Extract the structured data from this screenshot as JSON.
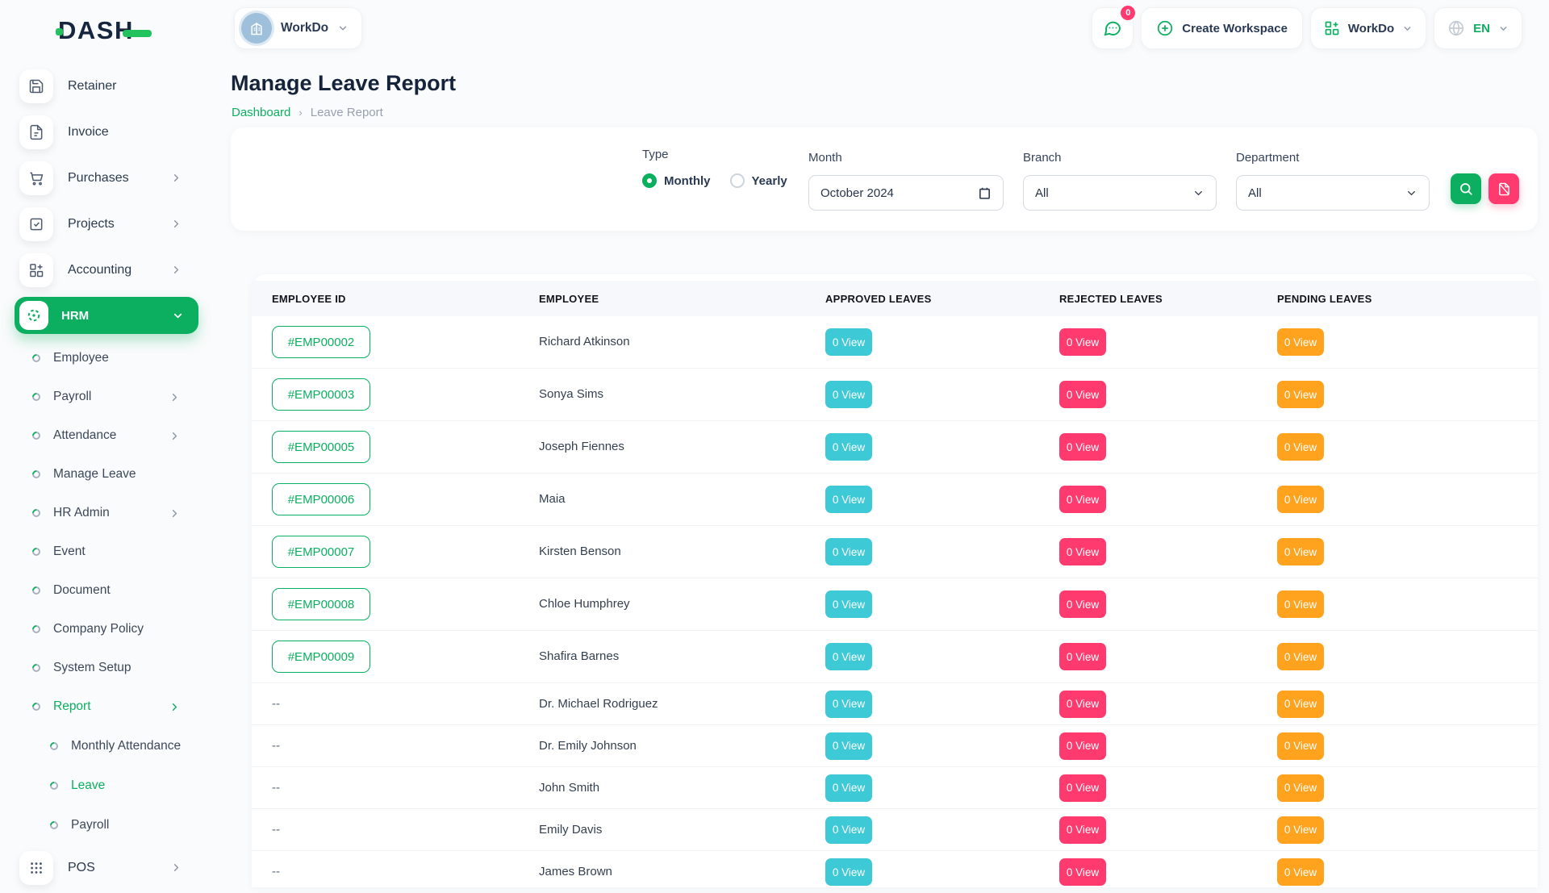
{
  "brand": {
    "logo_text": "DASH"
  },
  "workspace_selector": {
    "name": "WorkDo"
  },
  "header": {
    "messages_badge": "0",
    "create_workspace_label": "Create Workspace",
    "workspace_dropdown_label": "WorkDo",
    "language": "EN"
  },
  "sidebar": {
    "items": [
      {
        "label": "Retainer",
        "icon": "save",
        "chevron": false
      },
      {
        "label": "Invoice",
        "icon": "invoice",
        "chevron": false
      },
      {
        "label": "Purchases",
        "icon": "cart",
        "chevron": true
      },
      {
        "label": "Projects",
        "icon": "projects",
        "chevron": true
      },
      {
        "label": "Accounting",
        "icon": "accounting",
        "chevron": true
      }
    ],
    "hrm": {
      "label": "HRM"
    },
    "hrm_submenu": [
      {
        "label": "Employee",
        "chevron": false,
        "active": false
      },
      {
        "label": "Payroll",
        "chevron": true,
        "active": false
      },
      {
        "label": "Attendance",
        "chevron": true,
        "active": false
      },
      {
        "label": "Manage Leave",
        "chevron": false,
        "active": false
      },
      {
        "label": "HR Admin",
        "chevron": true,
        "active": false
      },
      {
        "label": "Event",
        "chevron": false,
        "active": false
      },
      {
        "label": "Document",
        "chevron": false,
        "active": false
      },
      {
        "label": "Company Policy",
        "chevron": false,
        "active": false
      },
      {
        "label": "System Setup",
        "chevron": false,
        "active": false
      },
      {
        "label": "Report",
        "chevron": true,
        "active": true,
        "children": [
          {
            "label": "Monthly Attendance",
            "active": false
          },
          {
            "label": "Leave",
            "active": true
          },
          {
            "label": "Payroll",
            "active": false
          }
        ]
      }
    ],
    "pos": {
      "label": "POS"
    }
  },
  "page": {
    "title": "Manage Leave Report",
    "breadcrumb_link": "Dashboard",
    "breadcrumb_current": "Leave Report"
  },
  "filters": {
    "type_label": "Type",
    "type_options": [
      {
        "label": "Monthly",
        "selected": true
      },
      {
        "label": "Yearly",
        "selected": false
      }
    ],
    "month_label": "Month",
    "month_value": "October 2024",
    "branch_label": "Branch",
    "branch_value": "All",
    "department_label": "Department",
    "department_value": "All"
  },
  "table": {
    "columns": [
      "Employee ID",
      "Employee",
      "Approved Leaves",
      "Rejected Leaves",
      "Pending Leaves"
    ],
    "empty_id": "--",
    "rows": [
      {
        "id": "#EMP00002",
        "name": "Richard Atkinson",
        "approved": "0 View",
        "rejected": "0 View",
        "pending": "0 View"
      },
      {
        "id": "#EMP00003",
        "name": "Sonya Sims",
        "approved": "0 View",
        "rejected": "0 View",
        "pending": "0 View"
      },
      {
        "id": "#EMP00005",
        "name": "Joseph Fiennes",
        "approved": "0 View",
        "rejected": "0 View",
        "pending": "0 View"
      },
      {
        "id": "#EMP00006",
        "name": "Maia",
        "approved": "0 View",
        "rejected": "0 View",
        "pending": "0 View"
      },
      {
        "id": "#EMP00007",
        "name": "Kirsten Benson",
        "approved": "0 View",
        "rejected": "0 View",
        "pending": "0 View"
      },
      {
        "id": "#EMP00008",
        "name": "Chloe Humphrey",
        "approved": "0 View",
        "rejected": "0 View",
        "pending": "0 View"
      },
      {
        "id": "#EMP00009",
        "name": "Shafira Barnes",
        "approved": "0 View",
        "rejected": "0 View",
        "pending": "0 View"
      },
      {
        "id": "",
        "name": "Dr. Michael Rodriguez",
        "approved": "0 View",
        "rejected": "0 View",
        "pending": "0 View"
      },
      {
        "id": "",
        "name": "Dr. Emily Johnson",
        "approved": "0 View",
        "rejected": "0 View",
        "pending": "0 View"
      },
      {
        "id": "",
        "name": "John Smith",
        "approved": "0 View",
        "rejected": "0 View",
        "pending": "0 View"
      },
      {
        "id": "",
        "name": "Emily Davis",
        "approved": "0 View",
        "rejected": "0 View",
        "pending": "0 View"
      },
      {
        "id": "",
        "name": "James Brown",
        "approved": "0 View",
        "rejected": "0 View",
        "pending": "0 View"
      }
    ]
  },
  "colors": {
    "primary_green": "#0caf60",
    "info_teal": "#3ec9d6",
    "danger_pink": "#ff3a6e",
    "warning_orange": "#ffa21d",
    "dark_text": "#15243b"
  }
}
